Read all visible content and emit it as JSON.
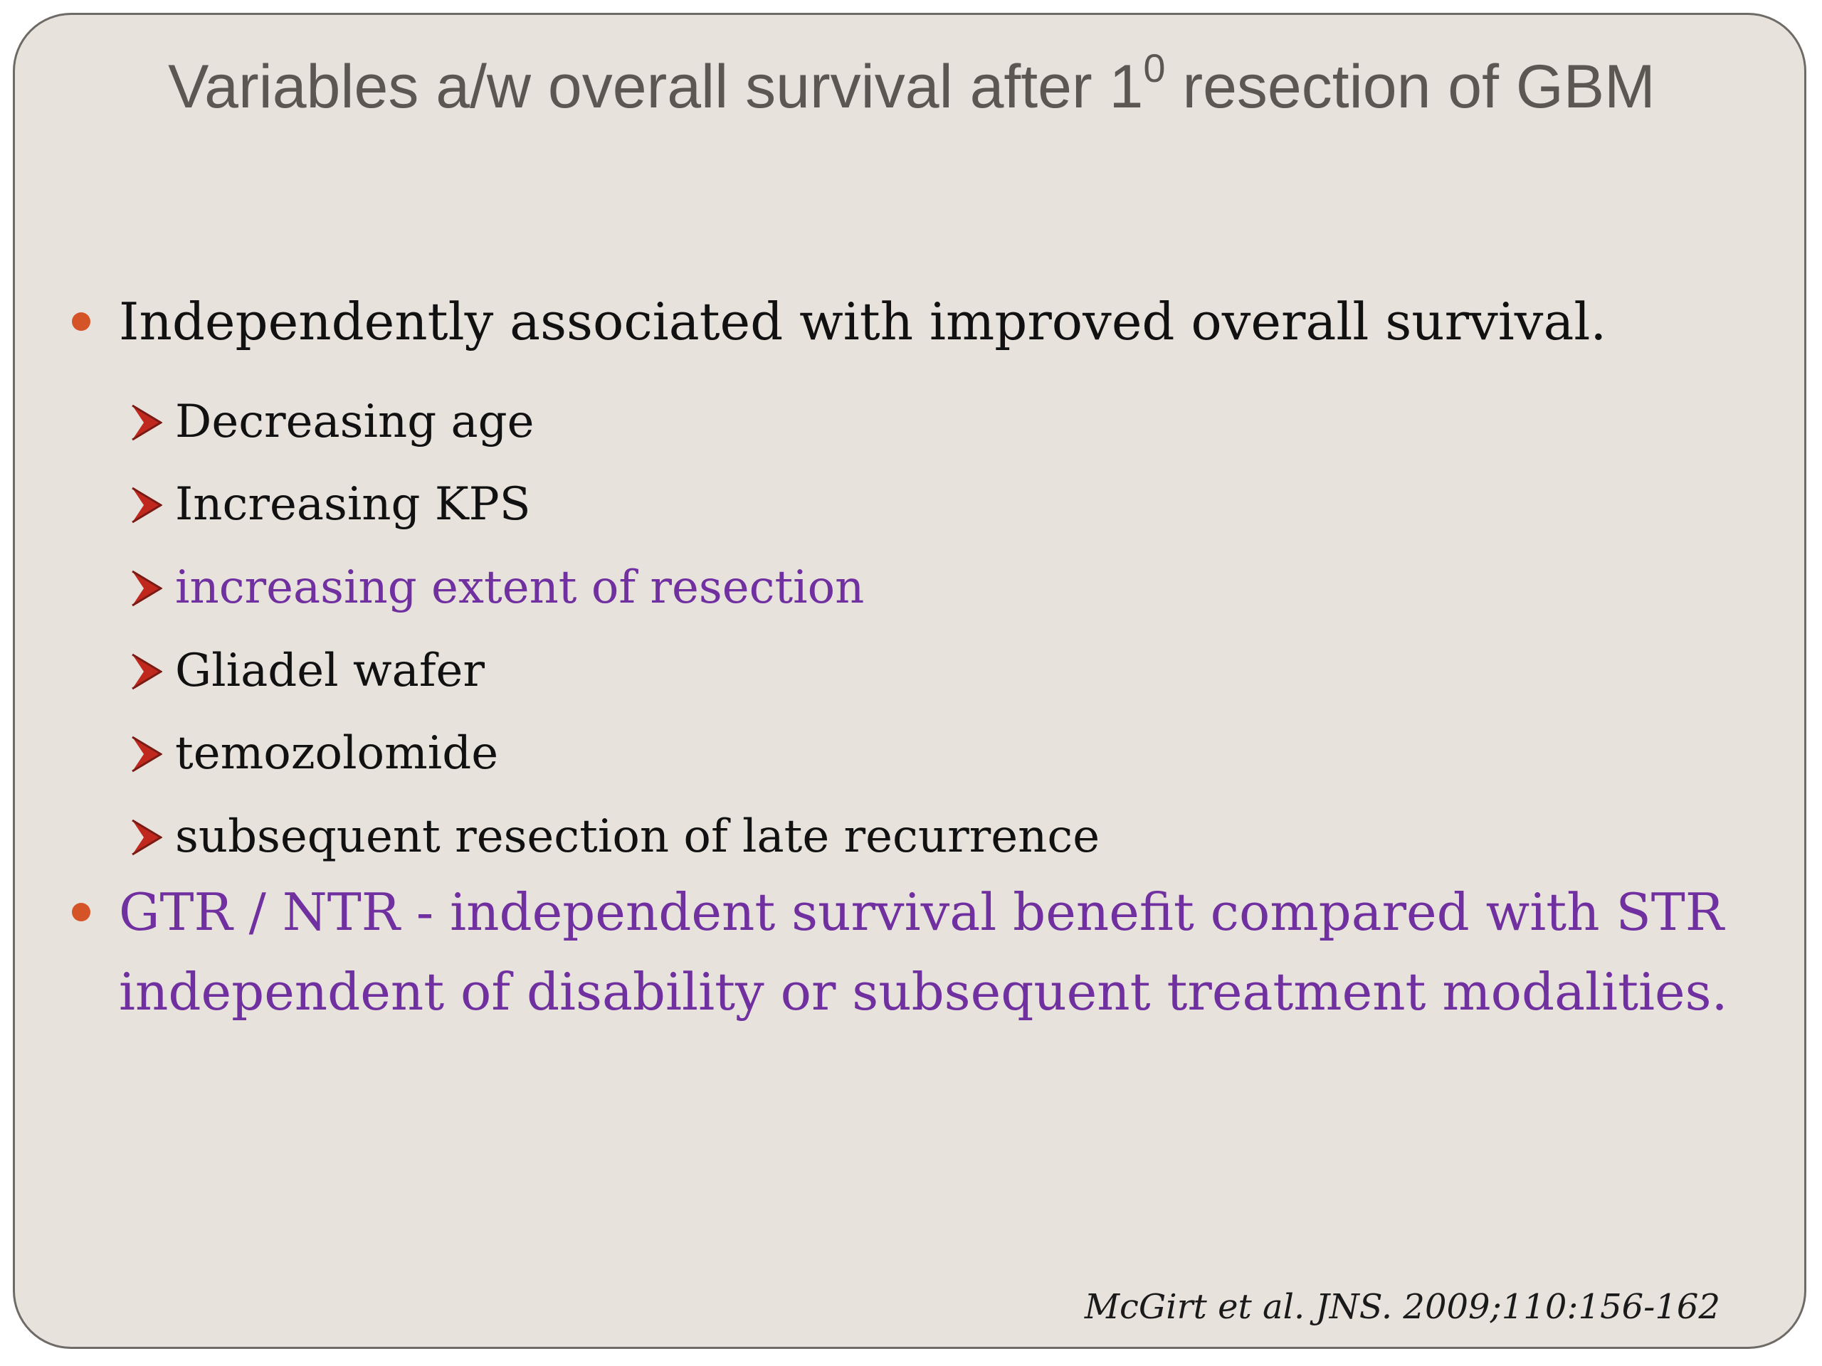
{
  "slide": {
    "title_main": "Variables a/w overall survival after 1",
    "title_sup": "0",
    "title_end": " resection of GBM",
    "bullets": [
      {
        "text": "Independently associated with improved overall survival.",
        "sub": [
          {
            "text": "Decreasing age",
            "color": "#111111"
          },
          {
            "text": "Increasing KPS",
            "color": "#111111"
          },
          {
            "text": "increasing extent of resection",
            "color": "#7030a0"
          },
          {
            "text": "Gliadel wafer",
            "color": "#111111"
          },
          {
            "text": "temozolomide",
            "color": "#111111"
          },
          {
            "text": "subsequent resection of late recurrence",
            "color": "#111111"
          }
        ]
      },
      {
        "text_line1": "GTR / NTR - independent survival benefit compared with STR",
        "text_line2": "independent of disability or subsequent treatment modalities.",
        "color": "#7030a0"
      }
    ],
    "citation": "McGirt et al. JNS. 2009;110:156-162",
    "colors": {
      "background": "#e8e2dc",
      "bullet_dot": "#d45428",
      "arrow": "#c0281e",
      "accent_purple": "#7030a0"
    }
  }
}
